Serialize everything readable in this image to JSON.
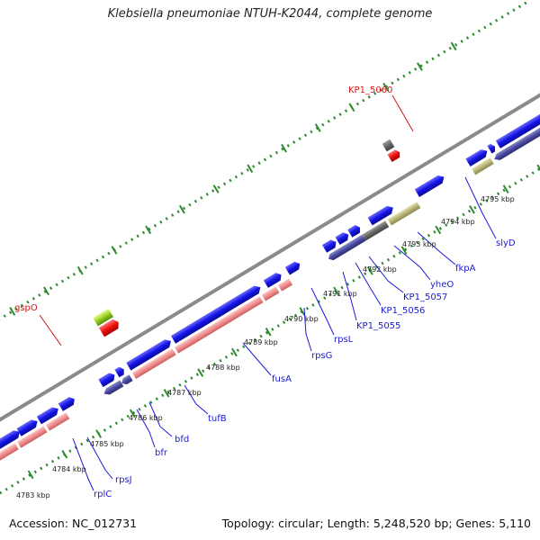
{
  "title": "Klebsiella pneumoniae NTUH-K2044, complete genome",
  "footer": {
    "accession": "Accession: NC_012731",
    "summary": "Topology: circular; Length: 5,248,520 bp; Genes: 5,110"
  },
  "scale_labels": [
    "4783 kbp",
    "4784 kbp",
    "4785 kbp",
    "4786 kbp",
    "4787 kbp",
    "4788 kbp",
    "4789 kbp",
    "4790 kbp",
    "4791 kbp",
    "4792 kbp",
    "4793 kbp",
    "4794 kbp",
    "4795 kbp"
  ],
  "gene_labels": [
    "rplC",
    "rpsJ",
    "bfr",
    "bfd",
    "tufB",
    "fusA",
    "rpsG",
    "rpsL",
    "KP1_5055",
    "KP1_5056",
    "KP1_5057",
    "yheO",
    "fkpA",
    "slyD"
  ],
  "highlighted_labels": [
    "gspO",
    "KP1_5060"
  ],
  "colors": {
    "backbone": "#8a8a8a",
    "cds_forward": "#1414e6",
    "cds_reverse": "#4a4aa0",
    "rna": "#f08c8c",
    "other": "#b8b478",
    "label_blue": "#1a1ad6",
    "label_red": "#d01818",
    "ticks": "#2e8a2e"
  }
}
